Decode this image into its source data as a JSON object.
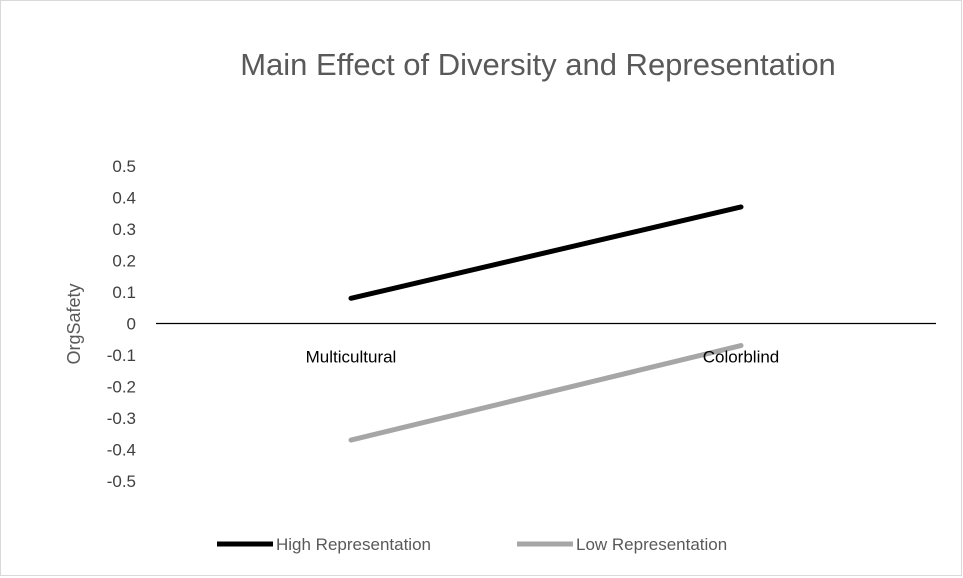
{
  "chart_data": {
    "type": "line",
    "title": "Main Effect of Diversity and Representation",
    "xlabel": "",
    "ylabel": "OrgSafety",
    "categories": [
      "Multicultural",
      "Colorblind"
    ],
    "ylim": [
      -0.5,
      0.5
    ],
    "yticks": [
      "0.5",
      "0.4",
      "0.3",
      "0.2",
      "0.1",
      "0",
      "-0.1",
      "-0.2",
      "-0.3",
      "-0.4",
      "-0.5"
    ],
    "ytick_values": [
      0.5,
      0.4,
      0.3,
      0.2,
      0.1,
      0,
      -0.1,
      -0.2,
      -0.3,
      -0.4,
      -0.5
    ],
    "grid": false,
    "legend_position": "bottom",
    "series": [
      {
        "name": "High Representation",
        "values": [
          0.08,
          0.37
        ],
        "color": "#000000"
      },
      {
        "name": "Low Representation",
        "values": [
          -0.37,
          -0.07
        ],
        "color": "#a6a6a6"
      }
    ]
  }
}
